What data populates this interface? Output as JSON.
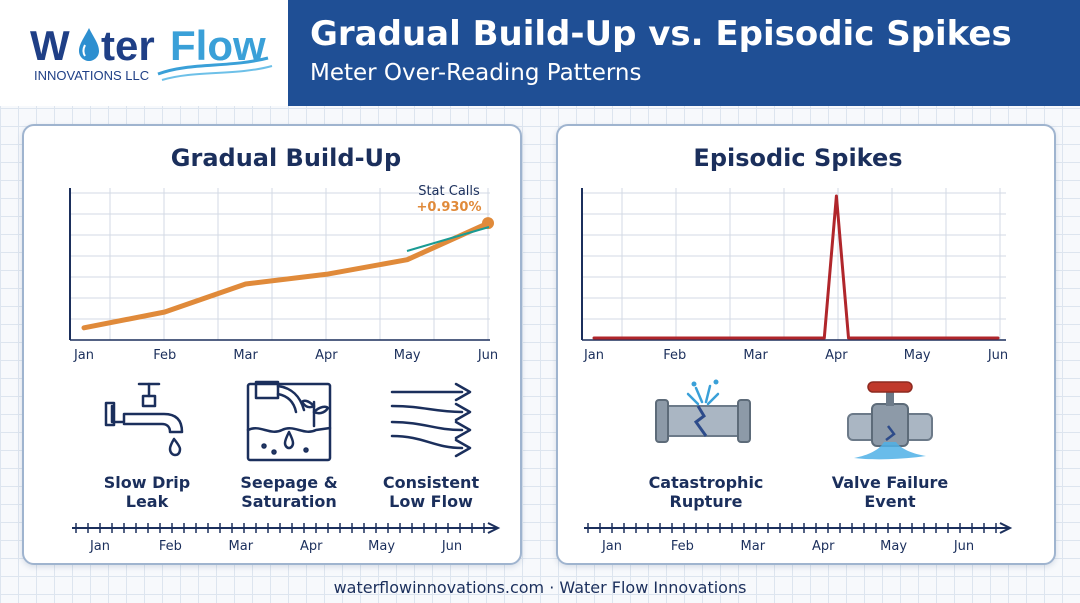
{
  "brand": {
    "name_part1": "W",
    "name_part2": "ter",
    "name_part3": "Flow",
    "tagline": "INNOVATIONS LLC",
    "color_dark": "#1f3f86",
    "color_light": "#3aa0d8"
  },
  "header": {
    "title": "Gradual Build-Up vs. Episodic Spikes",
    "subtitle": "Meter Over-Reading Patterns",
    "banner_color": "#1f4f95"
  },
  "panels": {
    "left": {
      "title": "Gradual Build-Up",
      "annotation_label": "Stat Calls",
      "annotation_value": "+0.930%",
      "icons": [
        {
          "icon": "faucet-drip-icon",
          "line1": "Slow Drip",
          "line2": "Leak"
        },
        {
          "icon": "seepage-icon",
          "line1": "Seepage &",
          "line2": "Saturation"
        },
        {
          "icon": "flow-arrows-icon",
          "line1": "Consistent",
          "line2": "Low Flow"
        }
      ],
      "timeline_labels": [
        "Jan",
        "Feb",
        "Mar",
        "Apr",
        "May",
        "Jun"
      ]
    },
    "right": {
      "title": "Episodic Spikes",
      "icons": [
        {
          "icon": "burst-pipe-icon",
          "line1": "Catastrophic",
          "line2": "Rupture"
        },
        {
          "icon": "broken-valve-icon",
          "line1": "Valve Failure",
          "line2": "Event"
        }
      ],
      "timeline_labels": [
        "Jan",
        "Feb",
        "Mar",
        "Apr",
        "May",
        "Jun"
      ]
    }
  },
  "footer": {
    "text": "waterflowinnovations.com · Water Flow Innovations"
  },
  "colors": {
    "gradual_line": "#e08a3a",
    "trend_line": "#1a9b94",
    "spike_line": "#b0262b",
    "navy": "#1b2f5c"
  },
  "chart_data": [
    {
      "type": "line",
      "title": "Gradual Build-Up",
      "categories": [
        "Jan",
        "Feb",
        "Mar",
        "Apr",
        "May",
        "Jun"
      ],
      "series": [
        {
          "values": [
            1.0,
            2.3,
            4.6,
            5.4,
            6.6,
            9.6
          ]
        }
      ],
      "grid": true,
      "annotation": {
        "label": "Stat Calls",
        "value": "+0.930%",
        "at": "Jun"
      }
    },
    {
      "type": "line",
      "title": "Episodic Spikes",
      "categories": [
        "Jan",
        "Feb",
        "Mar",
        "Apr",
        "May",
        "Jun"
      ],
      "series": [
        {
          "values": [
            0,
            0,
            0,
            0,
            10,
            0,
            0,
            0,
            0
          ],
          "x": [
            0,
            1,
            2,
            2.85,
            3.0,
            3.15,
            4,
            5,
            5
          ]
        }
      ],
      "grid": true
    }
  ]
}
